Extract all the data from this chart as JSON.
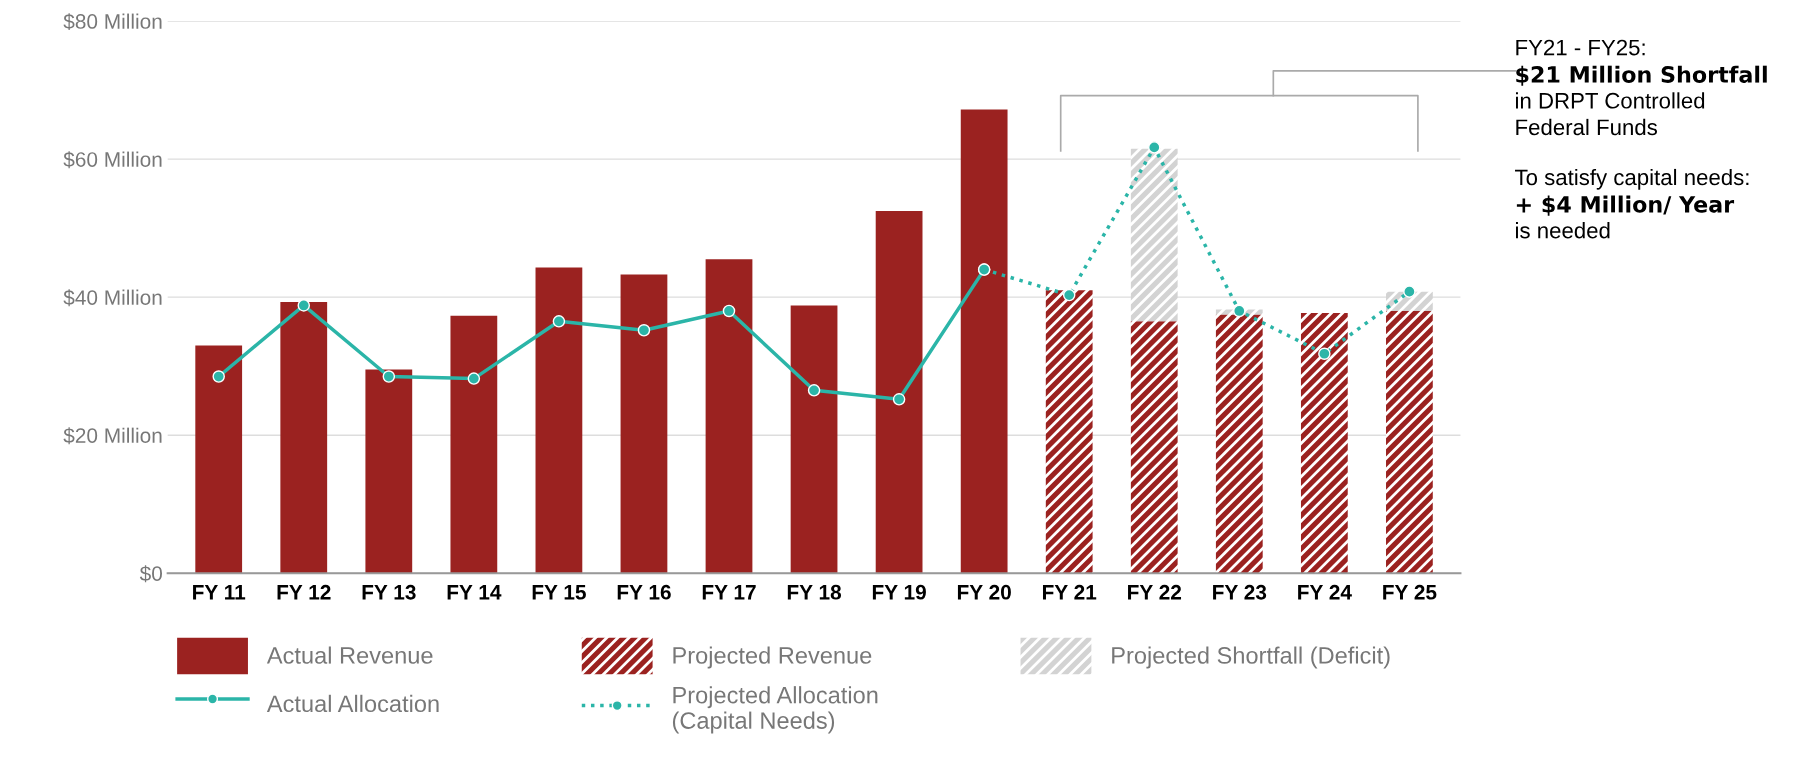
{
  "chart_data": {
    "type": "bar",
    "stacked": true,
    "categories": [
      "FY 11",
      "FY 12",
      "FY 13",
      "FY 14",
      "FY 15",
      "FY 16",
      "FY 17",
      "FY 18",
      "FY 19",
      "FY 20",
      "FY 21",
      "FY 22",
      "FY 23",
      "FY 24",
      "FY 25"
    ],
    "series": [
      {
        "name": "Actual Revenue",
        "color": "#9b2220",
        "values": [
          33,
          39.3,
          29.5,
          37.3,
          44.3,
          43.3,
          45.5,
          38.8,
          52.5,
          67.2,
          null,
          null,
          null,
          null,
          null
        ]
      },
      {
        "name": "Projected Revenue",
        "color": "#9b2220",
        "values": [
          null,
          null,
          null,
          null,
          null,
          null,
          null,
          null,
          null,
          null,
          41,
          36.5,
          37.5,
          37.7,
          38
        ]
      },
      {
        "name": "Projected Shortfall (Deficit)",
        "color": "#d3d3d3",
        "values": [
          null,
          null,
          null,
          null,
          null,
          null,
          null,
          null,
          null,
          null,
          null,
          25,
          0.7,
          null,
          2.8
        ]
      },
      {
        "name": "Actual Allocation",
        "type": "line",
        "color": "#2bb5a8",
        "line_style": "solid",
        "marker": "circle",
        "values": [
          28.5,
          38.8,
          28.5,
          28.2,
          36.5,
          35.2,
          38,
          26.5,
          25.2,
          44,
          null,
          null,
          null,
          null,
          null
        ]
      },
      {
        "name": "Projected Allocation\n(Capital Needs)",
        "type": "line",
        "color": "#2bb5a8",
        "line_style": "dotted",
        "marker": "circle",
        "values": [
          null,
          null,
          null,
          null,
          null,
          null,
          null,
          null,
          null,
          44,
          40.3,
          61.7,
          38,
          31.8,
          40.8
        ]
      }
    ],
    "ylim": [
      0,
      80
    ],
    "yticks": [
      {
        "value": 0,
        "label": "$0"
      },
      {
        "value": 20,
        "label": "$20 Million"
      },
      {
        "value": 40,
        "label": "$40 Million"
      },
      {
        "value": 60,
        "label": "$60 Million"
      },
      {
        "value": 80,
        "label": "$80 Million"
      }
    ],
    "grid": "y",
    "legend": "bottom",
    "annotations": [
      "FY21 - FY25:",
      "$21 Million Shortfall",
      "in DRPT Controlled",
      "Federal Funds",
      "To satisfy capital needs:",
      "+ $4 Million/ Year",
      "is needed"
    ]
  }
}
